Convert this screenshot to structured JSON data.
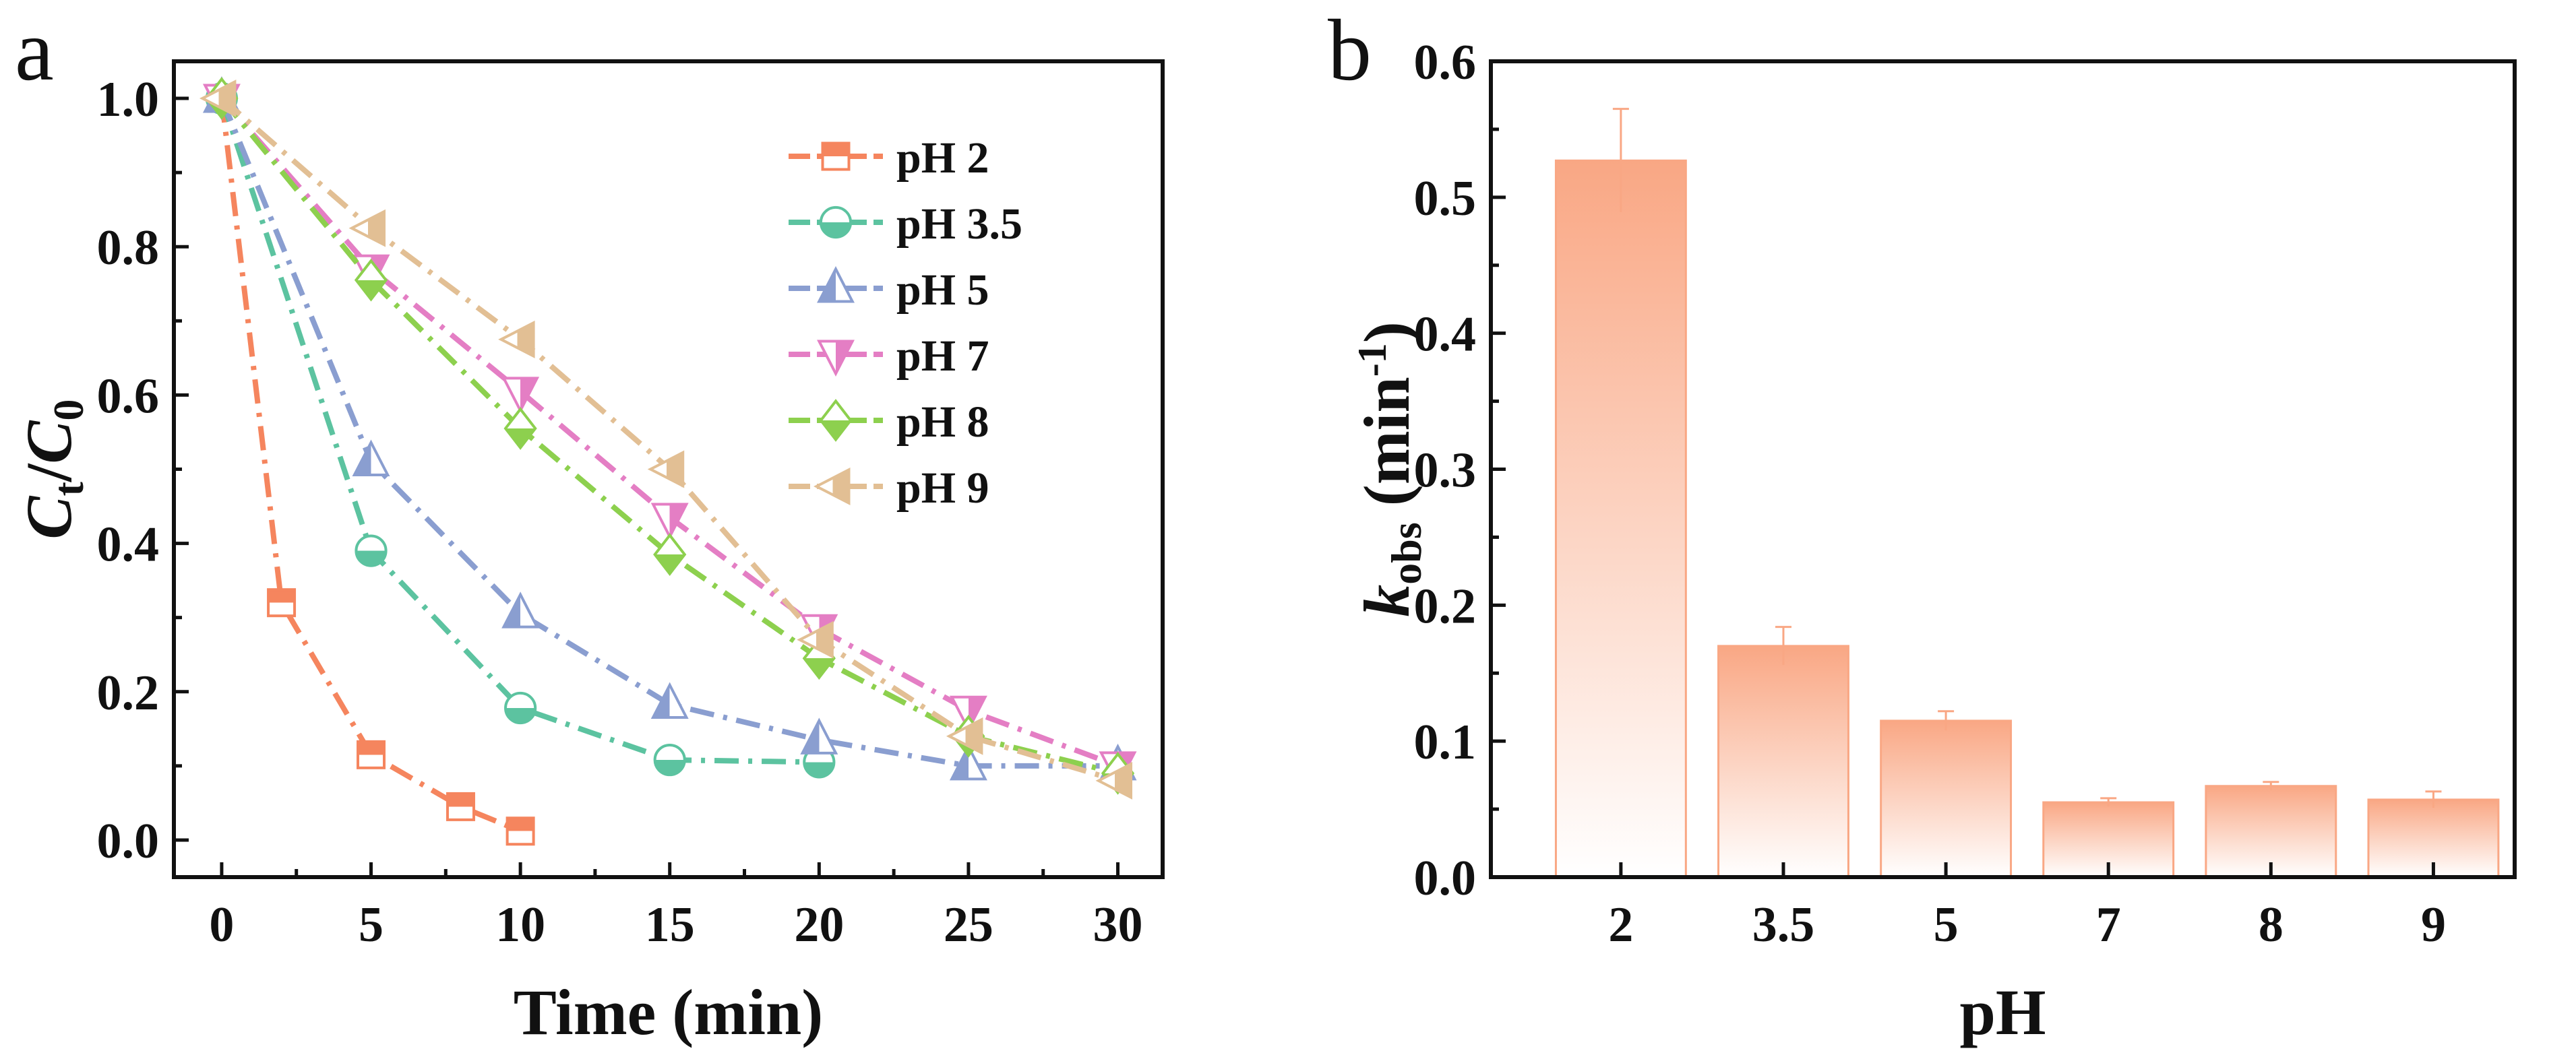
{
  "chart_data": [
    {
      "panel": "a",
      "type": "line",
      "xlabel": "Time (min)",
      "ylabel_main": "C",
      "ylabel_sub1": "t",
      "ylabel_slash": "/",
      "ylabel_main2": "C",
      "ylabel_sub2": "0",
      "xlim": [
        -1.6,
        31.5
      ],
      "ylim": [
        -0.05,
        1.05
      ],
      "xticks": [
        0,
        5,
        10,
        15,
        20,
        25,
        30
      ],
      "yticks": [
        "0.0",
        "0.2",
        "0.4",
        "0.6",
        "0.8",
        "1.0"
      ],
      "legend_position": "top-right",
      "series": [
        {
          "name": "pH 2",
          "color": "#F5855E",
          "marker": "square",
          "x": [
            0,
            2,
            5,
            8,
            10
          ],
          "y": [
            1.0,
            0.32,
            0.115,
            0.045,
            0.012
          ]
        },
        {
          "name": "pH 3.5",
          "color": "#5CC3A0",
          "marker": "circle",
          "x": [
            0,
            5,
            10,
            15,
            20
          ],
          "y": [
            1.0,
            0.39,
            0.178,
            0.108,
            0.105
          ]
        },
        {
          "name": "pH 5",
          "color": "#8A9ED0",
          "marker": "triangle-up",
          "x": [
            0,
            5,
            10,
            15,
            20,
            25,
            30
          ],
          "y": [
            1.0,
            0.51,
            0.305,
            0.183,
            0.135,
            0.1,
            0.1
          ]
        },
        {
          "name": "pH 7",
          "color": "#E47EC4",
          "marker": "triangle-down",
          "x": [
            0,
            5,
            10,
            15,
            20,
            25,
            30
          ],
          "y": [
            1.0,
            0.77,
            0.605,
            0.435,
            0.285,
            0.175,
            0.1
          ]
        },
        {
          "name": "pH 8",
          "color": "#8DD04E",
          "marker": "diamond",
          "x": [
            0,
            5,
            10,
            15,
            20,
            25,
            30
          ],
          "y": [
            1.0,
            0.755,
            0.555,
            0.385,
            0.245,
            0.14,
            0.09
          ]
        },
        {
          "name": "pH 9",
          "color": "#E2BF94",
          "marker": "triangle-left",
          "x": [
            0,
            5,
            10,
            15,
            20,
            25,
            30
          ],
          "y": [
            1.0,
            0.825,
            0.675,
            0.5,
            0.27,
            0.14,
            0.08
          ]
        }
      ]
    },
    {
      "panel": "b",
      "type": "bar",
      "xlabel": "pH",
      "ylabel_main": "k",
      "ylabel_sub": "obs",
      "ylabel_unit": " (min",
      "ylabel_sup": "-1",
      "ylabel_close": ")",
      "ylim": [
        0,
        0.6
      ],
      "yticks": [
        "0.0",
        "0.1",
        "0.2",
        "0.3",
        "0.4",
        "0.5",
        "0.6"
      ],
      "categories": [
        "2",
        "3.5",
        "5",
        "7",
        "8",
        "9"
      ],
      "values": [
        0.527,
        0.17,
        0.115,
        0.055,
        0.067,
        0.057
      ],
      "errors": [
        0.038,
        0.014,
        0.007,
        0.003,
        0.003,
        0.006
      ],
      "color": "#F9A784"
    }
  ]
}
